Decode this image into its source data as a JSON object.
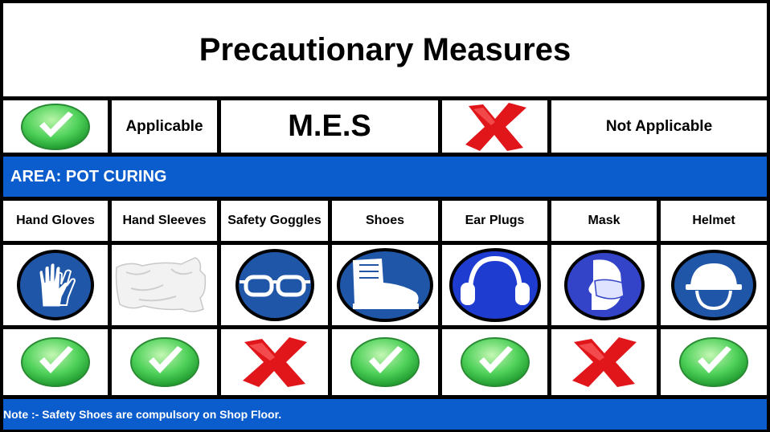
{
  "title": "Precautionary Measures",
  "legend": {
    "applicable_label": "Applicable",
    "center_label": "M.E.S",
    "not_applicable_label": "Not Applicable"
  },
  "area_label": "AREA: POT CURING",
  "items": [
    {
      "label": "Hand Gloves",
      "icon": "hand-gloves-icon",
      "applicable": true
    },
    {
      "label": "Hand Sleeves",
      "icon": "hand-sleeves-icon",
      "applicable": true
    },
    {
      "label": "Safety Goggles",
      "icon": "safety-goggles-icon",
      "applicable": false
    },
    {
      "label": "Shoes",
      "icon": "safety-shoes-icon",
      "applicable": true
    },
    {
      "label": "Ear Plugs",
      "icon": "ear-protection-icon",
      "applicable": true
    },
    {
      "label": "Mask",
      "icon": "mask-icon",
      "applicable": false
    },
    {
      "label": "Helmet",
      "icon": "helmet-icon",
      "applicable": true
    }
  ],
  "note": "Note :- Safety Shoes are compulsory on Shop Floor.",
  "colors": {
    "banner_blue": "#0b5ccc",
    "icon_blue": "#1f56a8",
    "check_green": "#4fd15a",
    "cross_red": "#e0161b"
  }
}
